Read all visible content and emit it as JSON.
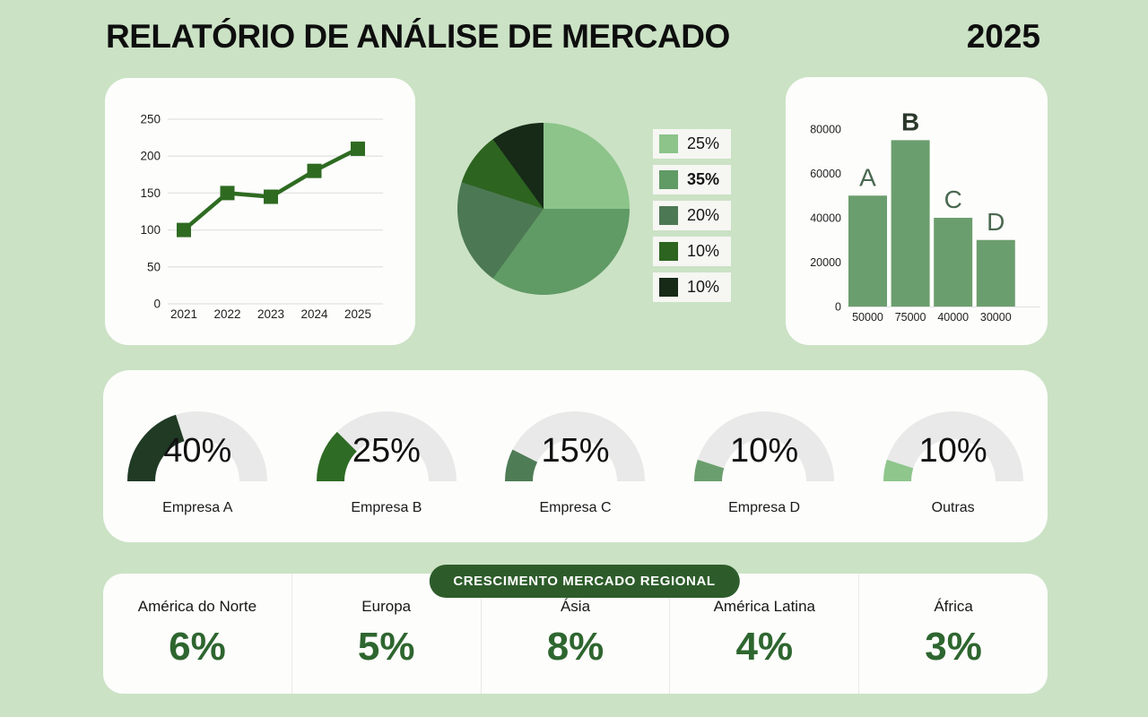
{
  "header": {
    "title": "RELATÓRIO DE ANÁLISE DE MERCADO",
    "year": "2025"
  },
  "colors": {
    "background": "#cbe2c5",
    "card": "#fdfdfc",
    "accent_dark_green": "#2d5c2a",
    "value_green": "#2e662f",
    "grid": "#e3e3e3",
    "gauge_track": "#e9e9e9"
  },
  "chart_data": [
    {
      "type": "line",
      "name": "annual-trend",
      "x": [
        "2021",
        "2022",
        "2023",
        "2024",
        "2025"
      ],
      "values": [
        100,
        150,
        145,
        180,
        210
      ],
      "yticks": [
        0,
        50,
        100,
        150,
        200,
        250
      ],
      "ylim": [
        0,
        250
      ],
      "grid": true,
      "line_color": "#2e6b21",
      "marker": "square"
    },
    {
      "type": "pie",
      "name": "market-share-pie",
      "values": [
        25,
        35,
        20,
        10,
        10
      ],
      "labels": [
        "25%",
        "35%",
        "20%",
        "10%",
        "10%"
      ],
      "colors": [
        "#8cc48a",
        "#609a64",
        "#4d7854",
        "#2d6420",
        "#172a18"
      ],
      "legend_position": "right",
      "legend_bold_index": 1,
      "start_angle_deg": 0,
      "direction": "clockwise"
    },
    {
      "type": "bar",
      "name": "segment-bars",
      "categories": [
        "A",
        "B",
        "C",
        "D"
      ],
      "values": [
        50000,
        75000,
        40000,
        30000
      ],
      "xtick_labels": [
        "50000",
        "75000",
        "40000",
        "30000"
      ],
      "yticks": [
        0,
        20000,
        40000,
        60000,
        80000
      ],
      "ylim": [
        0,
        80000
      ],
      "bar_color": "#6b9e6e",
      "category_label_color": "#4a6950",
      "highlight_index": 1,
      "highlight_label_color": "#2b382b"
    },
    {
      "type": "gauge-row",
      "name": "company-share-gauges",
      "max_percent": 100,
      "items": [
        {
          "label": "Empresa A",
          "value_label": "40%",
          "value": 40,
          "color": "#203a24"
        },
        {
          "label": "Empresa B",
          "value_label": "25%",
          "value": 25,
          "color": "#2e6b24"
        },
        {
          "label": "Empresa C",
          "value_label": "15%",
          "value": 15,
          "color": "#4e7c55"
        },
        {
          "label": "Empresa D",
          "value_label": "10%",
          "value": 10,
          "color": "#6b9e6e"
        },
        {
          "label": "Outras",
          "value_label": "10%",
          "value": 10,
          "color": "#8fc68c"
        }
      ]
    },
    {
      "type": "table",
      "name": "regional-growth",
      "title": "CRESCIMENTO MERCADO REGIONAL",
      "columns": [
        "América do Norte",
        "Europa",
        "Ásia",
        "América Latina",
        "África"
      ],
      "values": [
        "6%",
        "5%",
        "8%",
        "4%",
        "3%"
      ]
    }
  ]
}
